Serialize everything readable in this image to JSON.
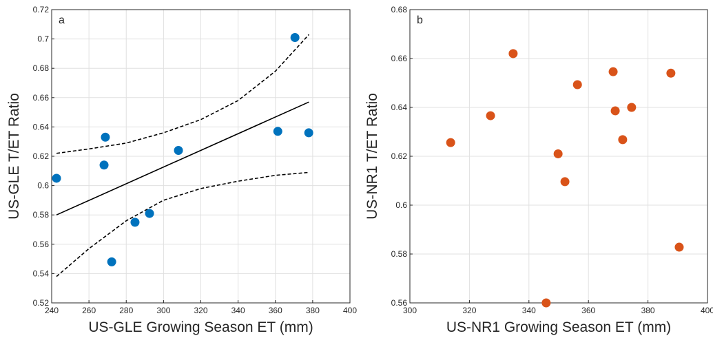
{
  "chart_data": [
    {
      "type": "scatter",
      "panel": "a",
      "xlabel": "US-GLE Growing Season ET (mm)",
      "ylabel": "US-GLE T/ET Ratio",
      "color": "#0072bd",
      "grid": true,
      "x": [
        242.6,
        268.8,
        268.1,
        272.2,
        284.7,
        292.5,
        308,
        361.3,
        370.5,
        377.9
      ],
      "values": [
        0.605,
        0.633,
        0.614,
        0.548,
        0.575,
        0.581,
        0.624,
        0.637,
        0.701,
        0.636
      ],
      "fit": {
        "x": [
          242.6,
          378
        ],
        "values": [
          0.58,
          0.657
        ]
      },
      "upper": {
        "x": [
          242.6,
          260,
          280,
          300,
          320,
          340,
          360,
          378
        ],
        "values": [
          0.622,
          0.625,
          0.629,
          0.636,
          0.645,
          0.658,
          0.678,
          0.703
        ]
      },
      "lower": {
        "x": [
          242.6,
          260,
          280,
          300,
          320,
          340,
          360,
          378
        ],
        "values": [
          0.538,
          0.557,
          0.576,
          0.59,
          0.598,
          0.603,
          0.607,
          0.609
        ]
      },
      "xlim": [
        240,
        400
      ],
      "xticks": [
        240,
        260,
        280,
        300,
        320,
        340,
        360,
        380,
        400
      ],
      "ylim": [
        0.52,
        0.72
      ],
      "yticks": [
        0.52,
        0.54,
        0.56,
        0.58,
        0.6,
        0.62,
        0.64,
        0.66,
        0.68,
        0.7,
        0.72
      ]
    },
    {
      "type": "scatter",
      "panel": "b",
      "xlabel": "US-NR1 Growing Season ET (mm)",
      "ylabel": "US-NR1 T/ET Ratio",
      "color": "#d95319",
      "grid": true,
      "x": [
        313.7,
        327.1,
        334.7,
        345.8,
        349.8,
        352.1,
        356.3,
        368.3,
        369,
        374.5,
        371.5,
        387.7,
        390.5
      ],
      "values": [
        0.6256,
        0.6366,
        0.662,
        0.56,
        0.621,
        0.6096,
        0.6493,
        0.6546,
        0.6386,
        0.64,
        0.6268,
        0.654,
        0.5828
      ],
      "xlim": [
        300,
        400
      ],
      "xticks": [
        300,
        320,
        340,
        360,
        380,
        400
      ],
      "ylim": [
        0.56,
        0.68
      ],
      "yticks": [
        0.56,
        0.58,
        0.6,
        0.62,
        0.64,
        0.66,
        0.68
      ]
    }
  ]
}
